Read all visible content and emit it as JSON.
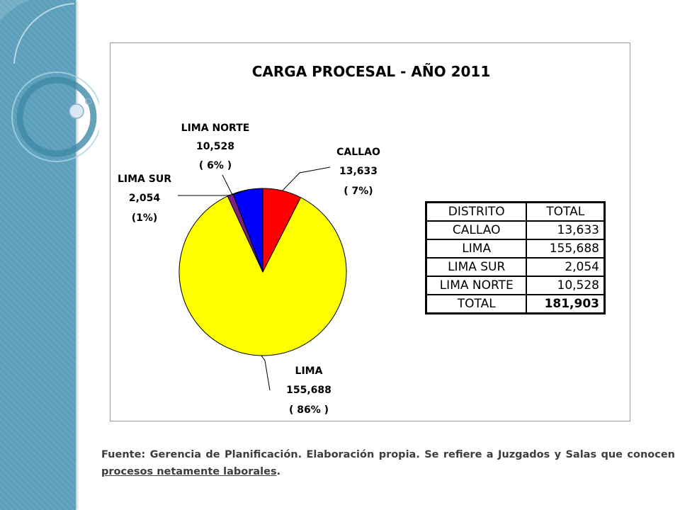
{
  "chart_data": {
    "type": "pie",
    "title": "CARGA PROCESAL - AÑO 2011",
    "slices": [
      {
        "name": "CALLAO",
        "value": 13633,
        "value_label": "13,633",
        "pct_label": "( 7%)",
        "color": "#ff0000"
      },
      {
        "name": "LIMA",
        "value": 155688,
        "value_label": "155,688",
        "pct_label": "( 86% )",
        "color": "#ffff00"
      },
      {
        "name": "LIMA SUR",
        "value": 2054,
        "value_label": "2,054",
        "pct_label": "(1%)",
        "color": "#7f1f7f"
      },
      {
        "name": "LIMA NORTE",
        "value": 10528,
        "value_label": "10,528",
        "pct_label": "( 6% )",
        "color": "#0000ff"
      }
    ]
  },
  "table": {
    "headers": [
      "DISTRITO",
      "TOTAL"
    ],
    "rows": [
      [
        "CALLAO",
        "13,633"
      ],
      [
        "LIMA",
        "155,688"
      ],
      [
        "LIMA SUR",
        "2,054"
      ],
      [
        "LIMA NORTE",
        "10,528"
      ]
    ],
    "total": [
      "TOTAL",
      "181,903"
    ]
  },
  "footnote": {
    "text_before": "Fuente: Gerencia de Planificación. Elaboración propia. Se refiere a Juzgados y Salas que conocen ",
    "underlined": "procesos netamente laborales",
    "text_after": "."
  }
}
